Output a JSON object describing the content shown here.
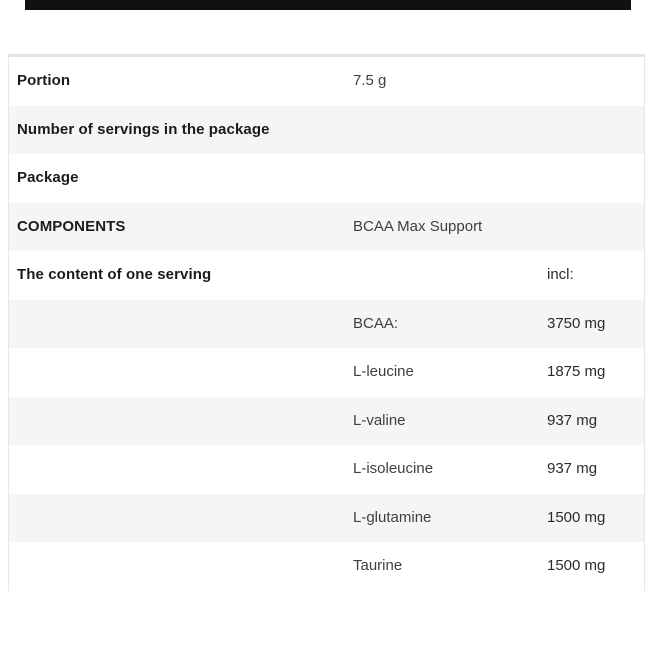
{
  "top_banner": {
    "description": "black image strip cut off at top of screenshot"
  },
  "colors": {
    "row_alt": "#f5f5f5",
    "border": "#e7e7e7",
    "banner": "#111111"
  },
  "table": {
    "rows": [
      {
        "label": "Portion",
        "value": "7.5 g",
        "amount": ""
      },
      {
        "label": "Number of servings in the package",
        "value": "",
        "amount": ""
      },
      {
        "label": "Package",
        "value": "",
        "amount": ""
      },
      {
        "label": "COMPONENTS",
        "value": "BCAA Max Support",
        "amount": ""
      },
      {
        "label": "The content of one serving",
        "value": "",
        "amount": "incl:"
      },
      {
        "label": "",
        "value": "BCAA:",
        "amount": "3750 mg"
      },
      {
        "label": "",
        "value": "L-leucine",
        "amount": "1875 mg"
      },
      {
        "label": "",
        "value": "L-valine",
        "amount": "937 mg"
      },
      {
        "label": "",
        "value": "L-isoleucine",
        "amount": "937 mg"
      },
      {
        "label": "",
        "value": "L-glutamine",
        "amount": "1500 mg"
      },
      {
        "label": "",
        "value": "Taurine",
        "amount": "1500 mg"
      }
    ]
  }
}
